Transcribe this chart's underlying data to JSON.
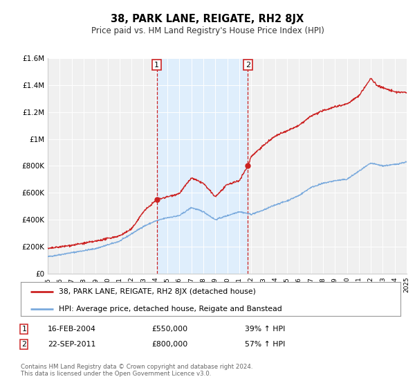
{
  "title": "38, PARK LANE, REIGATE, RH2 8JX",
  "subtitle": "Price paid vs. HM Land Registry's House Price Index (HPI)",
  "background_color": "#ffffff",
  "plot_background_color": "#f0f0f0",
  "grid_color": "#ffffff",
  "hpi_line_color": "#7aaadd",
  "price_line_color": "#cc2222",
  "shade_color": "#ddeeff",
  "sale1_date": 2004.12,
  "sale1_price": 550000,
  "sale2_date": 2011.73,
  "sale2_price": 800000,
  "xmin": 1995,
  "xmax": 2025,
  "ymin": 0,
  "ymax": 1600000,
  "yticks": [
    0,
    200000,
    400000,
    600000,
    800000,
    1000000,
    1200000,
    1400000,
    1600000
  ],
  "ytick_labels": [
    "£0",
    "£200K",
    "£400K",
    "£600K",
    "£800K",
    "£1M",
    "£1.2M",
    "£1.4M",
    "£1.6M"
  ],
  "legend_label1": "38, PARK LANE, REIGATE, RH2 8JX (detached house)",
  "legend_label2": "HPI: Average price, detached house, Reigate and Banstead",
  "table_row1_num": "1",
  "table_row1_date": "16-FEB-2004",
  "table_row1_price": "£550,000",
  "table_row1_hpi": "39% ↑ HPI",
  "table_row2_num": "2",
  "table_row2_date": "22-SEP-2011",
  "table_row2_price": "£800,000",
  "table_row2_hpi": "57% ↑ HPI",
  "footnote1": "Contains HM Land Registry data © Crown copyright and database right 2024.",
  "footnote2": "This data is licensed under the Open Government Licence v3.0.",
  "shade_start": 2004.12,
  "shade_end": 2011.73
}
